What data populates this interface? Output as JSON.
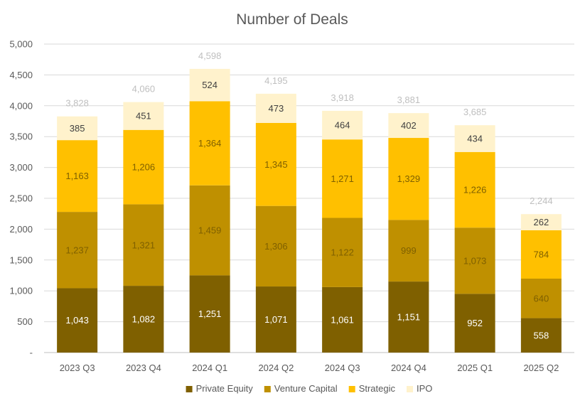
{
  "chart_data": {
    "type": "bar",
    "stacked": true,
    "title": "Number of Deals",
    "categories": [
      "2023 Q3",
      "2023 Q4",
      "2024 Q1",
      "2024 Q2",
      "2024 Q3",
      "2024 Q4",
      "2025 Q1",
      "2025 Q2"
    ],
    "series": [
      {
        "name": "Private Equity",
        "color": "#7f6000",
        "label_color": "#ffffff",
        "values": [
          1043,
          1082,
          1251,
          1071,
          1061,
          1151,
          952,
          558
        ]
      },
      {
        "name": "Venture Capital",
        "color": "#bf9000",
        "label_color": "#7f6000",
        "values": [
          1237,
          1321,
          1459,
          1306,
          1122,
          999,
          1073,
          640
        ]
      },
      {
        "name": "Strategic",
        "color": "#ffc000",
        "label_color": "#7f6000",
        "values": [
          1163,
          1206,
          1364,
          1345,
          1271,
          1329,
          1226,
          784
        ]
      },
      {
        "name": "IPO",
        "color": "#fff2cc",
        "label_color": "#404040",
        "values": [
          385,
          451,
          524,
          473,
          464,
          402,
          434,
          262
        ]
      }
    ],
    "totals": [
      3828,
      4060,
      4598,
      4195,
      3918,
      3881,
      3685,
      2244
    ],
    "y_ticks": [
      "-",
      "500",
      "1,000",
      "1,500",
      "2,000",
      "2,500",
      "3,000",
      "3,500",
      "4,000",
      "4,500",
      "5,000"
    ],
    "ylim": [
      0,
      5000
    ],
    "grid": true,
    "legend_position": "bottom"
  }
}
